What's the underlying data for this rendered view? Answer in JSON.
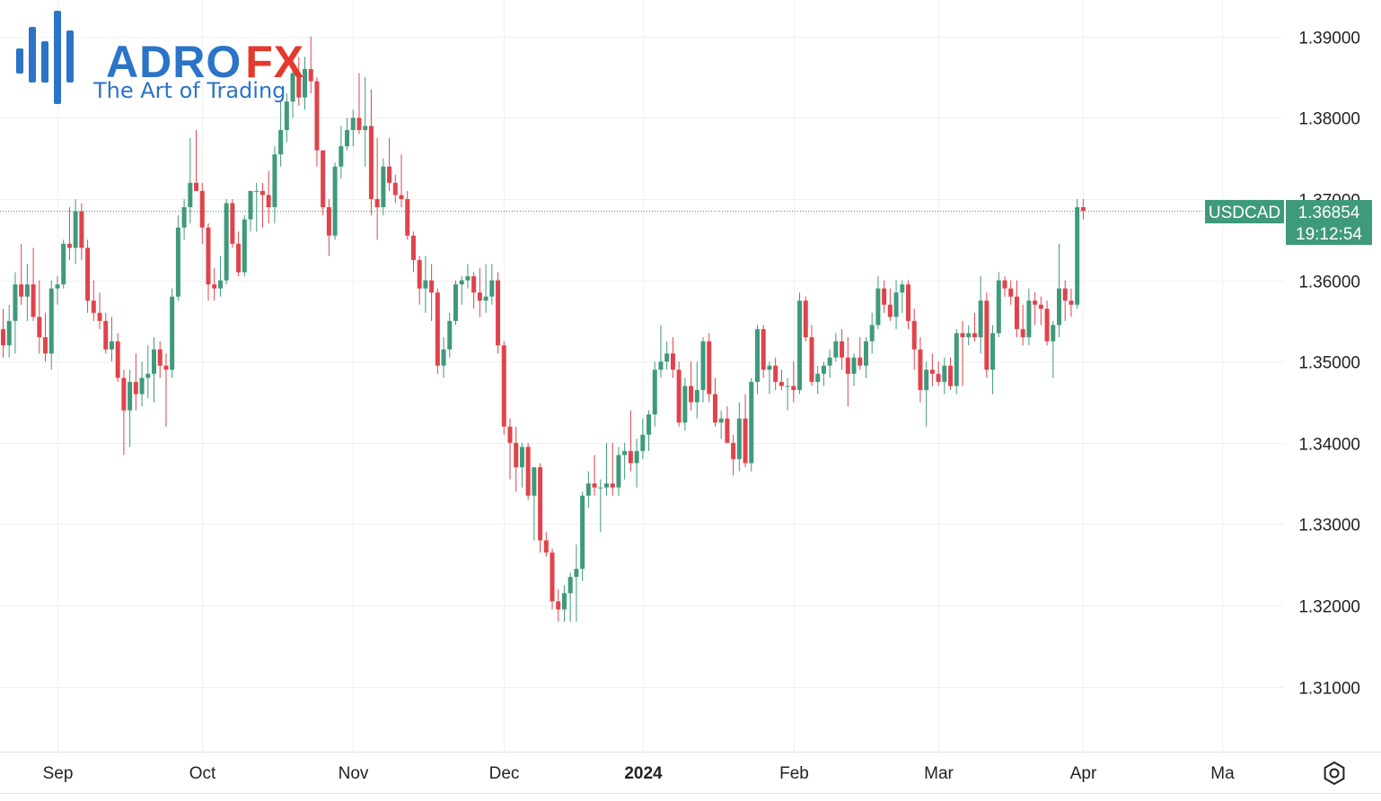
{
  "brand": {
    "name_part1": "ADRO",
    "name_part2": "FX",
    "tagline": "The Art of Trading",
    "primary_color": "#2b74c7",
    "accent_color": "#e5392c"
  },
  "instrument": {
    "symbol": "USDCAD",
    "last_price": "1.36854",
    "countdown": "19:12:54",
    "up_color": "#3f9a7c",
    "down_color": "#e0434b"
  },
  "icons": {
    "settings": "gear-icon"
  },
  "chart_data": {
    "type": "candlestick",
    "title": "USDCAD",
    "ylim": [
      1.302,
      1.3945
    ],
    "y_ticks": [
      1.31,
      1.32,
      1.33,
      1.34,
      1.35,
      1.36,
      1.37,
      1.38,
      1.39
    ],
    "y_tick_labels": [
      "1.31000",
      "1.32000",
      "1.33000",
      "1.34000",
      "1.35000",
      "1.36000",
      "1.37000",
      "1.38000",
      "1.39000"
    ],
    "x_ticks": [
      {
        "label": "Sep",
        "index": 9,
        "bold": false
      },
      {
        "label": "Oct",
        "index": 33,
        "bold": false
      },
      {
        "label": "Nov",
        "index": 58,
        "bold": false
      },
      {
        "label": "Dec",
        "index": 83,
        "bold": false
      },
      {
        "label": "2024",
        "index": 106,
        "bold": true
      },
      {
        "label": "Feb",
        "index": 131,
        "bold": false
      },
      {
        "label": "Mar",
        "index": 155,
        "bold": false
      },
      {
        "label": "Apr",
        "index": 179,
        "bold": false
      },
      {
        "label": "Ma",
        "index": 202,
        "bold": false
      }
    ],
    "last_value": 1.36854,
    "series": [
      {
        "name": "USDCAD",
        "candles": [
          [
            1.354,
            1.3565,
            1.3505,
            1.352
          ],
          [
            1.352,
            1.357,
            1.3505,
            1.355
          ],
          [
            1.355,
            1.361,
            1.351,
            1.3595
          ],
          [
            1.3595,
            1.3645,
            1.357,
            1.358
          ],
          [
            1.358,
            1.362,
            1.355,
            1.3595
          ],
          [
            1.3595,
            1.364,
            1.355,
            1.3555
          ],
          [
            1.3555,
            1.36,
            1.351,
            1.353
          ],
          [
            1.353,
            1.356,
            1.35,
            1.351
          ],
          [
            1.351,
            1.36,
            1.349,
            1.359
          ],
          [
            1.359,
            1.3605,
            1.357,
            1.3595
          ],
          [
            1.3595,
            1.365,
            1.359,
            1.3645
          ],
          [
            1.3645,
            1.369,
            1.3625,
            1.364
          ],
          [
            1.364,
            1.37,
            1.362,
            1.3685
          ],
          [
            1.3685,
            1.3695,
            1.3625,
            1.364
          ],
          [
            1.364,
            1.365,
            1.356,
            1.3575
          ],
          [
            1.3575,
            1.36,
            1.355,
            1.356
          ],
          [
            1.356,
            1.3585,
            1.354,
            1.355
          ],
          [
            1.355,
            1.356,
            1.351,
            1.3515
          ],
          [
            1.3515,
            1.3555,
            1.35,
            1.3525
          ],
          [
            1.3525,
            1.3535,
            1.3475,
            1.348
          ],
          [
            1.348,
            1.349,
            1.3385,
            1.344
          ],
          [
            1.344,
            1.349,
            1.3395,
            1.3475
          ],
          [
            1.3475,
            1.351,
            1.344,
            1.346
          ],
          [
            1.346,
            1.35,
            1.3445,
            1.348
          ],
          [
            1.348,
            1.352,
            1.3455,
            1.3485
          ],
          [
            1.3485,
            1.353,
            1.345,
            1.3515
          ],
          [
            1.3515,
            1.3525,
            1.348,
            1.3495
          ],
          [
            1.3495,
            1.351,
            1.342,
            1.349
          ],
          [
            1.349,
            1.359,
            1.348,
            1.358
          ],
          [
            1.358,
            1.368,
            1.3575,
            1.3665
          ],
          [
            1.3665,
            1.37,
            1.365,
            1.369
          ],
          [
            1.369,
            1.3775,
            1.367,
            1.372
          ],
          [
            1.372,
            1.3785,
            1.371,
            1.371
          ],
          [
            1.371,
            1.372,
            1.3645,
            1.3665
          ],
          [
            1.3665,
            1.367,
            1.3575,
            1.3595
          ],
          [
            1.3595,
            1.3615,
            1.3575,
            1.359
          ],
          [
            1.359,
            1.363,
            1.358,
            1.36
          ],
          [
            1.36,
            1.37,
            1.3595,
            1.3695
          ],
          [
            1.3695,
            1.37,
            1.364,
            1.3645
          ],
          [
            1.3645,
            1.366,
            1.3605,
            1.361
          ],
          [
            1.361,
            1.368,
            1.3605,
            1.3675
          ],
          [
            1.3675,
            1.371,
            1.366,
            1.371
          ],
          [
            1.371,
            1.372,
            1.366,
            1.371
          ],
          [
            1.371,
            1.372,
            1.3665,
            1.3705
          ],
          [
            1.3705,
            1.3735,
            1.367,
            1.369
          ],
          [
            1.369,
            1.3765,
            1.367,
            1.3755
          ],
          [
            1.3755,
            1.382,
            1.374,
            1.3785
          ],
          [
            1.3785,
            1.383,
            1.377,
            1.382
          ],
          [
            1.382,
            1.386,
            1.38,
            1.3855
          ],
          [
            1.3855,
            1.3875,
            1.3815,
            1.3825
          ],
          [
            1.3825,
            1.3875,
            1.381,
            1.386
          ],
          [
            1.386,
            1.39,
            1.383,
            1.3845
          ],
          [
            1.3845,
            1.385,
            1.374,
            1.376
          ],
          [
            1.376,
            1.376,
            1.368,
            1.369
          ],
          [
            1.369,
            1.37,
            1.363,
            1.3655
          ],
          [
            1.3655,
            1.3745,
            1.365,
            1.374
          ],
          [
            1.374,
            1.379,
            1.3725,
            1.3765
          ],
          [
            1.3765,
            1.38,
            1.376,
            1.3785
          ],
          [
            1.3785,
            1.381,
            1.3765,
            1.38
          ],
          [
            1.38,
            1.3855,
            1.378,
            1.3785
          ],
          [
            1.3785,
            1.385,
            1.374,
            1.379
          ],
          [
            1.379,
            1.3835,
            1.368,
            1.37
          ],
          [
            1.37,
            1.3775,
            1.365,
            1.369
          ],
          [
            1.369,
            1.375,
            1.368,
            1.374
          ],
          [
            1.374,
            1.3775,
            1.371,
            1.372
          ],
          [
            1.372,
            1.373,
            1.3695,
            1.3705
          ],
          [
            1.3705,
            1.3755,
            1.369,
            1.37
          ],
          [
            1.37,
            1.371,
            1.365,
            1.3655
          ],
          [
            1.3655,
            1.366,
            1.361,
            1.3625
          ],
          [
            1.3625,
            1.363,
            1.357,
            1.359
          ],
          [
            1.359,
            1.363,
            1.356,
            1.36
          ],
          [
            1.36,
            1.362,
            1.355,
            1.3585
          ],
          [
            1.3585,
            1.359,
            1.3485,
            1.3495
          ],
          [
            1.3495,
            1.353,
            1.348,
            1.3515
          ],
          [
            1.3515,
            1.356,
            1.3505,
            1.355
          ],
          [
            1.355,
            1.36,
            1.3545,
            1.3595
          ],
          [
            1.3595,
            1.3605,
            1.357,
            1.36
          ],
          [
            1.36,
            1.362,
            1.359,
            1.3605
          ],
          [
            1.3605,
            1.361,
            1.3565,
            1.3585
          ],
          [
            1.3585,
            1.3615,
            1.3555,
            1.3575
          ],
          [
            1.3575,
            1.362,
            1.356,
            1.358
          ],
          [
            1.358,
            1.362,
            1.357,
            1.36
          ],
          [
            1.36,
            1.361,
            1.351,
            1.352
          ],
          [
            1.352,
            1.3525,
            1.341,
            1.342
          ],
          [
            1.342,
            1.343,
            1.3355,
            1.34
          ],
          [
            1.34,
            1.342,
            1.334,
            1.337
          ],
          [
            1.337,
            1.34,
            1.3345,
            1.3395
          ],
          [
            1.3395,
            1.34,
            1.333,
            1.3335
          ],
          [
            1.3335,
            1.337,
            1.328,
            1.337
          ],
          [
            1.337,
            1.3375,
            1.3265,
            1.328
          ],
          [
            1.328,
            1.329,
            1.326,
            1.3265
          ],
          [
            1.3265,
            1.327,
            1.3195,
            1.3205
          ],
          [
            1.3205,
            1.322,
            1.318,
            1.3195
          ],
          [
            1.3195,
            1.3225,
            1.318,
            1.3215
          ],
          [
            1.3215,
            1.324,
            1.318,
            1.3235
          ],
          [
            1.3235,
            1.3275,
            1.318,
            1.3245
          ],
          [
            1.3245,
            1.334,
            1.323,
            1.3335
          ],
          [
            1.3335,
            1.3365,
            1.332,
            1.335
          ],
          [
            1.335,
            1.3385,
            1.3335,
            1.3345
          ],
          [
            1.3345,
            1.3355,
            1.329,
            1.3345
          ],
          [
            1.3345,
            1.34,
            1.3335,
            1.335
          ],
          [
            1.335,
            1.34,
            1.3335,
            1.3345
          ],
          [
            1.3345,
            1.3395,
            1.3335,
            1.3385
          ],
          [
            1.3385,
            1.34,
            1.3355,
            1.339
          ],
          [
            1.339,
            1.344,
            1.3365,
            1.3375
          ],
          [
            1.3375,
            1.3405,
            1.3345,
            1.339
          ],
          [
            1.339,
            1.343,
            1.338,
            1.341
          ],
          [
            1.341,
            1.344,
            1.339,
            1.3435
          ],
          [
            1.3435,
            1.35,
            1.342,
            1.349
          ],
          [
            1.349,
            1.3545,
            1.348,
            1.35
          ],
          [
            1.35,
            1.3525,
            1.349,
            1.351
          ],
          [
            1.351,
            1.353,
            1.348,
            1.349
          ],
          [
            1.349,
            1.35,
            1.342,
            1.3425
          ],
          [
            1.3425,
            1.348,
            1.3415,
            1.347
          ],
          [
            1.347,
            1.35,
            1.344,
            1.345
          ],
          [
            1.345,
            1.35,
            1.343,
            1.3465
          ],
          [
            1.3465,
            1.353,
            1.345,
            1.3525
          ],
          [
            1.3525,
            1.3535,
            1.345,
            1.346
          ],
          [
            1.346,
            1.348,
            1.342,
            1.3425
          ],
          [
            1.3425,
            1.344,
            1.3405,
            1.343
          ],
          [
            1.343,
            1.3445,
            1.34,
            1.34
          ],
          [
            1.34,
            1.341,
            1.336,
            1.338
          ],
          [
            1.338,
            1.345,
            1.3365,
            1.343
          ],
          [
            1.343,
            1.346,
            1.337,
            1.3375
          ],
          [
            1.3375,
            1.348,
            1.3365,
            1.3475
          ],
          [
            1.3475,
            1.3545,
            1.346,
            1.354
          ],
          [
            1.354,
            1.3545,
            1.348,
            1.349
          ],
          [
            1.349,
            1.35,
            1.346,
            1.3495
          ],
          [
            1.3495,
            1.3505,
            1.3465,
            1.3475
          ],
          [
            1.3475,
            1.349,
            1.3465,
            1.347
          ],
          [
            1.347,
            1.348,
            1.344,
            1.347
          ],
          [
            1.347,
            1.35,
            1.345,
            1.3465
          ],
          [
            1.3465,
            1.3585,
            1.346,
            1.3575
          ],
          [
            1.3575,
            1.358,
            1.3525,
            1.353
          ],
          [
            1.353,
            1.3545,
            1.347,
            1.3475
          ],
          [
            1.3475,
            1.3495,
            1.346,
            1.3485
          ],
          [
            1.3485,
            1.35,
            1.347,
            1.3495
          ],
          [
            1.3495,
            1.3515,
            1.348,
            1.3505
          ],
          [
            1.3505,
            1.3535,
            1.35,
            1.3525
          ],
          [
            1.3525,
            1.354,
            1.349,
            1.3505
          ],
          [
            1.3505,
            1.353,
            1.3445,
            1.3485
          ],
          [
            1.3485,
            1.351,
            1.347,
            1.3505
          ],
          [
            1.3505,
            1.353,
            1.349,
            1.3495
          ],
          [
            1.3495,
            1.353,
            1.348,
            1.3525
          ],
          [
            1.3525,
            1.356,
            1.351,
            1.3545
          ],
          [
            1.3545,
            1.3605,
            1.354,
            1.359
          ],
          [
            1.359,
            1.36,
            1.356,
            1.357
          ],
          [
            1.357,
            1.359,
            1.355,
            1.3555
          ],
          [
            1.3555,
            1.36,
            1.354,
            1.3585
          ],
          [
            1.3585,
            1.36,
            1.356,
            1.3595
          ],
          [
            1.3595,
            1.36,
            1.354,
            1.355
          ],
          [
            1.355,
            1.3565,
            1.349,
            1.3515
          ],
          [
            1.3515,
            1.353,
            1.345,
            1.3465
          ],
          [
            1.3465,
            1.35,
            1.342,
            1.349
          ],
          [
            1.349,
            1.351,
            1.347,
            1.3485
          ],
          [
            1.3485,
            1.35,
            1.347,
            1.3475
          ],
          [
            1.3475,
            1.3505,
            1.346,
            1.3495
          ],
          [
            1.3495,
            1.3505,
            1.3465,
            1.347
          ],
          [
            1.347,
            1.354,
            1.346,
            1.3535
          ],
          [
            1.3535,
            1.355,
            1.347,
            1.353
          ],
          [
            1.353,
            1.3545,
            1.352,
            1.3535
          ],
          [
            1.3535,
            1.356,
            1.3525,
            1.353
          ],
          [
            1.353,
            1.3605,
            1.351,
            1.3575
          ],
          [
            1.3575,
            1.3585,
            1.348,
            1.349
          ],
          [
            1.349,
            1.3545,
            1.346,
            1.3535
          ],
          [
            1.3535,
            1.361,
            1.353,
            1.36
          ],
          [
            1.36,
            1.3605,
            1.358,
            1.359
          ],
          [
            1.359,
            1.36,
            1.357,
            1.358
          ],
          [
            1.358,
            1.36,
            1.353,
            1.354
          ],
          [
            1.354,
            1.357,
            1.352,
            1.353
          ],
          [
            1.353,
            1.359,
            1.352,
            1.3575
          ],
          [
            1.3575,
            1.3585,
            1.3545,
            1.357
          ],
          [
            1.357,
            1.358,
            1.3545,
            1.3565
          ],
          [
            1.3565,
            1.3575,
            1.352,
            1.3525
          ],
          [
            1.3525,
            1.355,
            1.348,
            1.3545
          ],
          [
            1.3545,
            1.3645,
            1.353,
            1.359
          ],
          [
            1.359,
            1.36,
            1.355,
            1.3575
          ],
          [
            1.3575,
            1.359,
            1.3555,
            1.357
          ],
          [
            1.357,
            1.37,
            1.3565,
            1.369
          ],
          [
            1.369,
            1.37,
            1.3675,
            1.36854
          ]
        ]
      }
    ]
  }
}
